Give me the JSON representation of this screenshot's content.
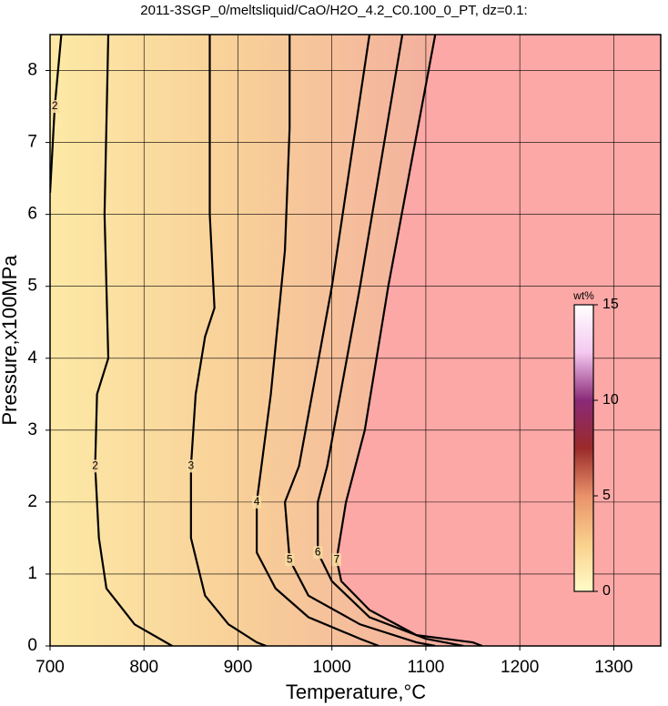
{
  "chart_data": {
    "type": "contour",
    "title": "2011-3SGP_0/meltsliquid/CaO/H2O_4.2_C0.100_0_PT, dz=0.1:",
    "x_label": "Temperature,°C",
    "y_label": "Pressure,x100MPa",
    "xlim": [
      700,
      1350
    ],
    "ylim": [
      0,
      8.5
    ],
    "xticks": [
      700,
      800,
      900,
      1000,
      1100,
      1200,
      1300
    ],
    "yticks": [
      0,
      1,
      2,
      3,
      4,
      5,
      6,
      7,
      8
    ],
    "grid": true,
    "colorbar": {
      "label": "wt%",
      "lim": [
        0,
        15
      ],
      "ticks": [
        0,
        5,
        10,
        15
      ],
      "colors": [
        "#fffcc8",
        "#f9d08c",
        "#e9926a",
        "#9a2a2a",
        "#8a2a78",
        "#f4c8f0",
        "#ffffff"
      ]
    },
    "series": [
      {
        "level": 2,
        "x": [
          712,
          705,
          700
        ],
        "y": [
          8.5,
          7.5,
          6.3
        ]
      },
      {
        "level": 2,
        "x": [
          762,
          758,
          762,
          750,
          748,
          752,
          760,
          790,
          830
        ],
        "y": [
          8.5,
          6,
          4.0,
          3.5,
          2.5,
          1.5,
          0.8,
          0.3,
          0
        ]
      },
      {
        "level": 3,
        "x": [
          870,
          870,
          875,
          865,
          855,
          850,
          850,
          865,
          890,
          920,
          930
        ],
        "y": [
          8.5,
          6,
          4.7,
          4.3,
          3.5,
          2.5,
          1.5,
          0.7,
          0.3,
          0.05,
          0
        ]
      },
      {
        "level": 4,
        "x": [
          955,
          955,
          950,
          935,
          920,
          920,
          940,
          975,
          1030,
          1050
        ],
        "y": [
          8.5,
          7.2,
          5.5,
          3.5,
          2.0,
          1.3,
          0.8,
          0.4,
          0.1,
          0
        ]
      },
      {
        "level": 5,
        "x": [
          1040,
          1000,
          965,
          950,
          955,
          975,
          1030,
          1090,
          1110
        ],
        "y": [
          8.5,
          5.0,
          2.5,
          2.0,
          1.2,
          0.7,
          0.3,
          0.05,
          0
        ]
      },
      {
        "level": 6,
        "x": [
          1075,
          1030,
          995,
          985,
          985,
          1000,
          1040,
          1100,
          1140
        ],
        "y": [
          8.5,
          5.0,
          2.5,
          2.0,
          1.3,
          0.9,
          0.4,
          0.1,
          0
        ]
      },
      {
        "level": 7,
        "x": [
          1110,
          1060,
          1035,
          1015,
          1005,
          1010,
          1040,
          1090,
          1150,
          1160
        ],
        "y": [
          8.5,
          5.0,
          3.0,
          2.0,
          1.2,
          0.9,
          0.5,
          0.15,
          0.05,
          0
        ]
      }
    ]
  }
}
